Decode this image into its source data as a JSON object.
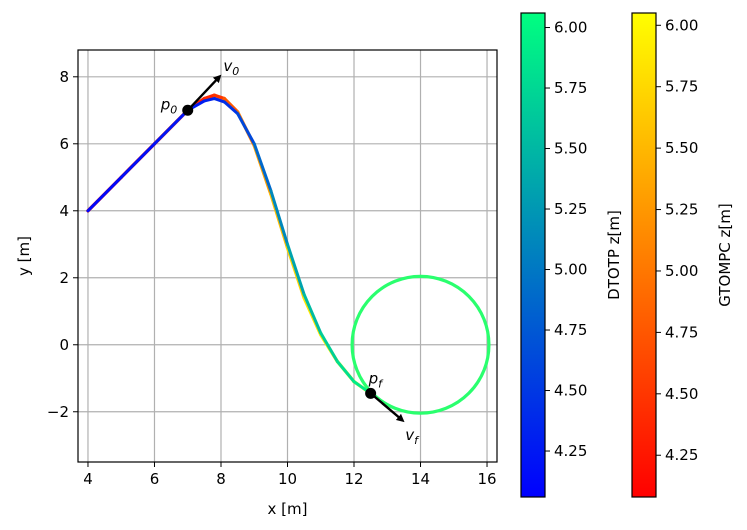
{
  "chart_data": {
    "type": "line",
    "xlabel": "x [m]",
    "ylabel": "y [m]",
    "xlim": [
      3.7,
      16.3
    ],
    "ylim": [
      -3.5,
      8.8
    ],
    "xticks": [
      4,
      6,
      8,
      10,
      12,
      14,
      16
    ],
    "yticks": [
      -2,
      0,
      2,
      4,
      6,
      8
    ],
    "ytick_labels": [
      "−2",
      "0",
      "2",
      "4",
      "6",
      "8"
    ],
    "grid": true,
    "series": [
      {
        "colorbar": "GTOMPC z[m]",
        "colormap": "autumn",
        "x": [
          4.0,
          5.0,
          6.0,
          7.0,
          7.5,
          7.8,
          8.1,
          8.5,
          9.0,
          9.5,
          10.0,
          10.5,
          11.0,
          11.5,
          12.0,
          12.5
        ],
        "y": [
          4.0,
          5.0,
          6.0,
          7.0,
          7.35,
          7.45,
          7.35,
          6.95,
          5.95,
          4.5,
          2.9,
          1.4,
          0.3,
          -0.5,
          -1.1,
          -1.45
        ],
        "z": [
          4.1,
          4.15,
          4.2,
          4.3,
          4.35,
          4.4,
          4.6,
          4.9,
          5.2,
          5.45,
          5.65,
          5.8,
          5.9,
          5.95,
          6.0,
          6.05
        ]
      },
      {
        "colorbar": "DTOTP z[m]",
        "colormap": "winter",
        "x": [
          4.0,
          5.0,
          6.0,
          7.0,
          7.5,
          7.8,
          8.1,
          8.5,
          9.0,
          9.5,
          10.0,
          10.5,
          11.0,
          11.5,
          12.0,
          12.5
        ],
        "y": [
          4.0,
          5.0,
          6.0,
          7.0,
          7.28,
          7.35,
          7.25,
          6.9,
          6.0,
          4.6,
          3.0,
          1.5,
          0.35,
          -0.5,
          -1.1,
          -1.45
        ],
        "z": [
          4.1,
          4.15,
          4.2,
          4.25,
          4.3,
          4.35,
          4.4,
          4.5,
          4.75,
          5.0,
          5.25,
          5.45,
          5.6,
          5.75,
          5.85,
          5.95
        ]
      }
    ],
    "points": [
      {
        "label": "p",
        "sub": "0",
        "x": 7.0,
        "y": 7.0
      },
      {
        "label": "p",
        "sub": "f",
        "x": 12.5,
        "y": -1.45
      }
    ],
    "arrows": [
      {
        "label": "v",
        "sub": "0",
        "from": [
          7.0,
          7.0
        ],
        "to": [
          7.95,
          8.0
        ]
      },
      {
        "label": "v",
        "sub": "f",
        "from": [
          12.5,
          -1.45
        ],
        "to": [
          13.45,
          -2.25
        ]
      }
    ],
    "circle": {
      "cx": 14.0,
      "cy": 0.0,
      "r": 2.05,
      "color": "#2aff6e"
    },
    "colorbars": [
      {
        "label": "DTOTP z[m]",
        "min": 4.06,
        "max": 6.06,
        "ticks": [
          4.25,
          4.5,
          4.75,
          5.0,
          5.25,
          5.5,
          5.75,
          6.0
        ],
        "tick_labels": [
          "4.25",
          "4.50",
          "4.75",
          "5.00",
          "5.25",
          "5.50",
          "5.75",
          "6.00"
        ],
        "colors": [
          "#0000ff",
          "#00ff80"
        ]
      },
      {
        "label": "GTOMPC z[m]",
        "min": 4.08,
        "max": 6.05,
        "ticks": [
          4.25,
          4.5,
          4.75,
          5.0,
          5.25,
          5.5,
          5.75,
          6.0
        ],
        "tick_labels": [
          "4.25",
          "4.50",
          "4.75",
          "5.00",
          "5.25",
          "5.50",
          "5.75",
          "6.00"
        ],
        "colors": [
          "#ff0000",
          "#ffff00"
        ]
      }
    ]
  }
}
